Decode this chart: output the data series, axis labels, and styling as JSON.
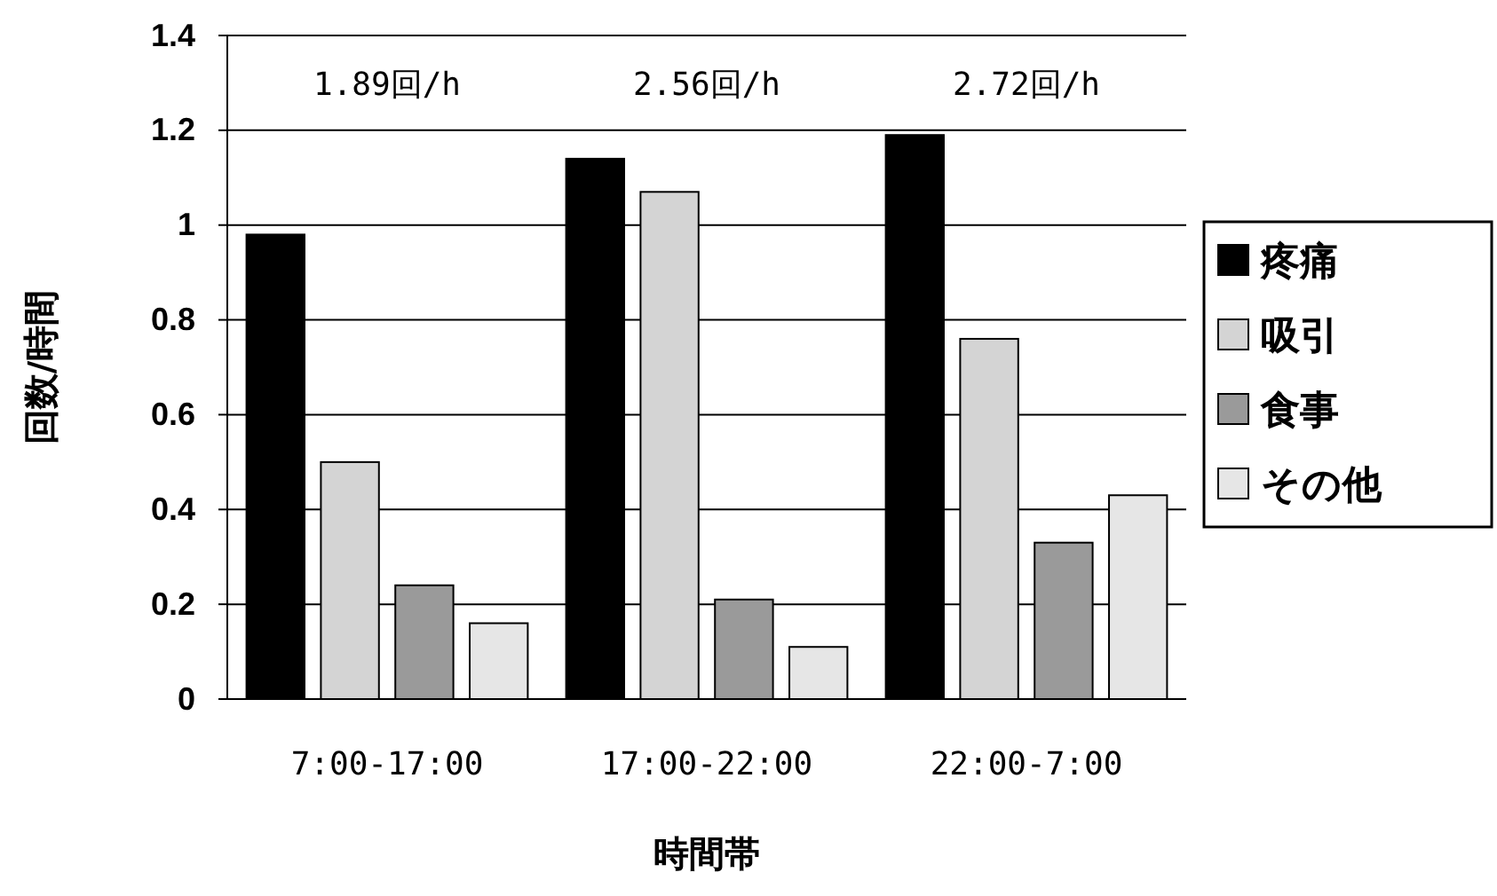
{
  "chart_data": {
    "type": "bar",
    "xlabel": "時間帯",
    "ylabel": "回数/時間",
    "categories": [
      "7:00-17:00",
      "17:00-22:00",
      "22:00-7:00"
    ],
    "series": [
      {
        "name": "疼痛",
        "color": "#000000",
        "values": [
          0.98,
          1.14,
          1.19
        ]
      },
      {
        "name": "吸引",
        "color": "#d4d4d4",
        "values": [
          0.5,
          1.07,
          0.76
        ]
      },
      {
        "name": "食事",
        "color": "#9a9a9a",
        "values": [
          0.24,
          0.21,
          0.33
        ]
      },
      {
        "name": "その他",
        "color": "#e6e6e6",
        "values": [
          0.16,
          0.11,
          0.43
        ]
      }
    ],
    "ylim": [
      0,
      1.4
    ],
    "yticks": [
      0,
      0.2,
      0.4,
      0.6,
      0.8,
      1,
      1.2,
      1.4
    ],
    "grid": "y",
    "legend": "right",
    "annotations": [
      "1.89回/h",
      "2.56回/h",
      "2.72回/h"
    ]
  }
}
